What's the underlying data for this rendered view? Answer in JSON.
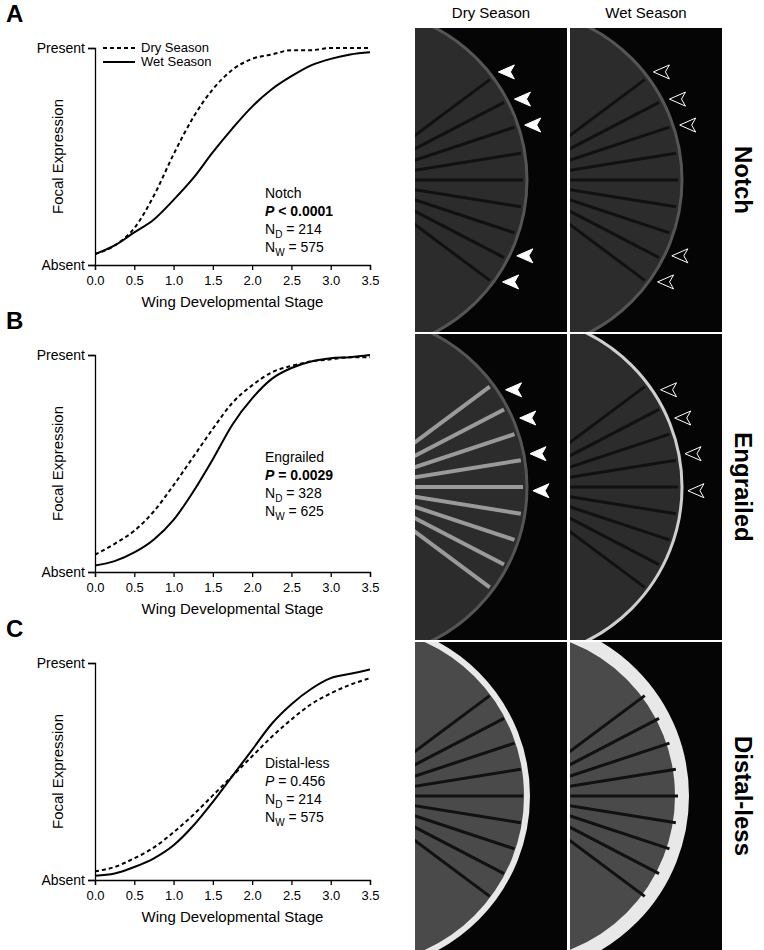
{
  "chart_data": [
    {
      "type": "line",
      "panel": "A",
      "x_label": "Wing Developmental Stage",
      "y_label": "Focal Expression",
      "annotations": [
        "Notch",
        "P < 0.0001",
        "ND = 214",
        "NW = 575"
      ],
      "legend": "upper left",
      "x": [
        0,
        0.25,
        0.5,
        0.75,
        1.0,
        1.25,
        1.5,
        1.75,
        2.0,
        2.25,
        2.5,
        2.75,
        3.0,
        3.25,
        3.5
      ],
      "series": [
        {
          "name": "Dry Season",
          "color": "#000000",
          "line_style": "dashed",
          "values": [
            0.05,
            0.09,
            0.17,
            0.32,
            0.51,
            0.68,
            0.81,
            0.9,
            0.95,
            0.97,
            0.99,
            0.99,
            1.0,
            1.0,
            1.0
          ]
        },
        {
          "name": "Wet Season",
          "color": "#000000",
          "line_style": "solid",
          "values": [
            0.05,
            0.09,
            0.15,
            0.21,
            0.3,
            0.4,
            0.52,
            0.63,
            0.73,
            0.81,
            0.87,
            0.92,
            0.95,
            0.97,
            0.98
          ]
        }
      ],
      "xlim": [
        0,
        3.5
      ],
      "xticks": [
        {
          "value": 0,
          "label": "0.0"
        },
        {
          "value": 0.5,
          "label": "0.5"
        },
        {
          "value": 1,
          "label": "1.0"
        },
        {
          "value": 1.5,
          "label": "1.5"
        },
        {
          "value": 2,
          "label": "2.0"
        },
        {
          "value": 2.5,
          "label": "2.5"
        },
        {
          "value": 3,
          "label": "3.0"
        },
        {
          "value": 3.5,
          "label": "3.5"
        }
      ],
      "ylim": [
        0,
        1
      ],
      "yticks": [
        {
          "value": 0,
          "label": "Absent"
        },
        {
          "value": 1,
          "label": "Present"
        }
      ]
    },
    {
      "type": "line",
      "panel": "B",
      "x_label": "Wing Developmental Stage",
      "y_label": "Focal Expression",
      "annotations": [
        "Engrailed",
        "P = 0.0029",
        "ND = 328",
        "NW = 625"
      ],
      "x": [
        0,
        0.25,
        0.5,
        0.75,
        1.0,
        1.25,
        1.5,
        1.75,
        2.0,
        2.25,
        2.5,
        2.75,
        3.0,
        3.25,
        3.5
      ],
      "series": [
        {
          "name": "Dry Season",
          "color": "#000000",
          "line_style": "dashed",
          "values": [
            0.08,
            0.13,
            0.19,
            0.28,
            0.4,
            0.53,
            0.66,
            0.78,
            0.86,
            0.92,
            0.95,
            0.97,
            0.98,
            0.99,
            0.99
          ]
        },
        {
          "name": "Wet Season",
          "color": "#000000",
          "line_style": "solid",
          "values": [
            0.03,
            0.05,
            0.09,
            0.15,
            0.24,
            0.37,
            0.52,
            0.68,
            0.8,
            0.89,
            0.94,
            0.97,
            0.985,
            0.99,
            1.0
          ]
        }
      ],
      "xlim": [
        0,
        3.5
      ],
      "xticks": [
        {
          "value": 0,
          "label": "0.0"
        },
        {
          "value": 0.5,
          "label": "0.5"
        },
        {
          "value": 1,
          "label": "1.0"
        },
        {
          "value": 1.5,
          "label": "1.5"
        },
        {
          "value": 2,
          "label": "2.0"
        },
        {
          "value": 2.5,
          "label": "2.5"
        },
        {
          "value": 3,
          "label": "3.0"
        },
        {
          "value": 3.5,
          "label": "3.5"
        }
      ],
      "ylim": [
        0,
        1
      ],
      "yticks": [
        {
          "value": 0,
          "label": "Absent"
        },
        {
          "value": 1,
          "label": "Present"
        }
      ]
    },
    {
      "type": "line",
      "panel": "C",
      "x_label": "Wing Developmental Stage",
      "y_label": "Focal Expression",
      "annotations": [
        "Distal-less",
        "P = 0.456",
        "ND = 214",
        "NW = 575"
      ],
      "x": [
        0,
        0.25,
        0.5,
        0.75,
        1.0,
        1.25,
        1.5,
        1.75,
        2.0,
        2.25,
        2.5,
        2.75,
        3.0,
        3.25,
        3.5
      ],
      "series": [
        {
          "name": "Dry Season",
          "color": "#000000",
          "line_style": "dashed",
          "values": [
            0.04,
            0.06,
            0.1,
            0.15,
            0.22,
            0.3,
            0.39,
            0.48,
            0.57,
            0.66,
            0.74,
            0.81,
            0.86,
            0.9,
            0.93
          ]
        },
        {
          "name": "Wet Season",
          "color": "#000000",
          "line_style": "solid",
          "values": [
            0.02,
            0.03,
            0.06,
            0.1,
            0.16,
            0.25,
            0.36,
            0.48,
            0.6,
            0.72,
            0.81,
            0.88,
            0.93,
            0.95,
            0.97
          ]
        }
      ],
      "xlim": [
        0,
        3.5
      ],
      "xticks": [
        {
          "value": 0,
          "label": "0.0"
        },
        {
          "value": 0.5,
          "label": "0.5"
        },
        {
          "value": 1,
          "label": "1.0"
        },
        {
          "value": 1.5,
          "label": "1.5"
        },
        {
          "value": 2,
          "label": "2.0"
        },
        {
          "value": 2.5,
          "label": "2.5"
        },
        {
          "value": 3,
          "label": "3.0"
        },
        {
          "value": 3.5,
          "label": "3.5"
        }
      ],
      "ylim": [
        0,
        1
      ],
      "yticks": [
        {
          "value": 0,
          "label": "Absent"
        },
        {
          "value": 1,
          "label": "Present"
        }
      ]
    }
  ],
  "image_panels": {
    "columns": [
      "Dry Season",
      "Wet Season"
    ],
    "rows": [
      "Notch",
      "Engrailed",
      "Distal-less"
    ]
  }
}
